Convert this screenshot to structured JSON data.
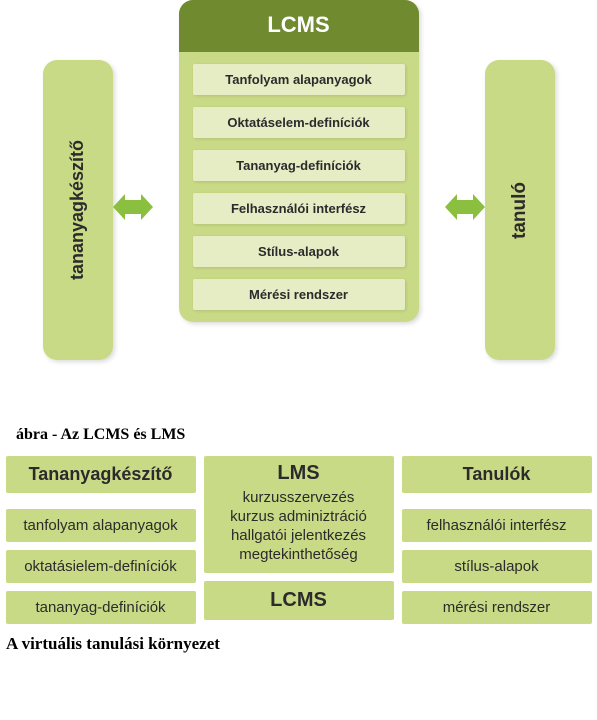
{
  "palette": {
    "mid_green": "#c9da86",
    "pale_green": "#e6edc5",
    "dark_green": "#6f8a2f",
    "arrow_green": "#8bbf3f",
    "text_dark": "#2b2b2b",
    "text_white": "#ffffff"
  },
  "fig1": {
    "left_label": "tananyagkészítő",
    "left_fontsize": 18,
    "right_label": "tanuló",
    "right_fontsize": 19,
    "center_title": "LCMS",
    "center_title_fontsize": 22,
    "items": [
      "Tanfolyam alapanyagok",
      "Oktatáselem-definíciók",
      "Tananyag-definíciók",
      "Felhasználói interfész",
      "Stílus-alapok",
      "Mérési rendszer"
    ],
    "item_fontsize": 13
  },
  "caption1": "ábra - Az LCMS és LMS",
  "fig2": {
    "left_head": "Tananyagkészítő",
    "right_head": "Tanulók",
    "head_fontsize": 18,
    "left_items": [
      "tanfolyam alapanyagok",
      "oktatásielem-definíciók",
      "tananyag-definíciók"
    ],
    "right_items": [
      "felhasználói interfész",
      "stílus-alapok",
      "mérési rendszer"
    ],
    "item_fontsize": 15,
    "mid_top_title": "LMS",
    "mid_top_lines": [
      "kurzusszervezés",
      "kurzus adminiztráció",
      "hallgatói jelentkezés",
      "megtekinthetőség"
    ],
    "mid_top_title_fontsize": 20,
    "mid_line_fontsize": 15,
    "mid_bottom_title": "LCMS",
    "mid_bottom_title_fontsize": 20
  },
  "caption2": "  A virtuális tanulási környezet"
}
